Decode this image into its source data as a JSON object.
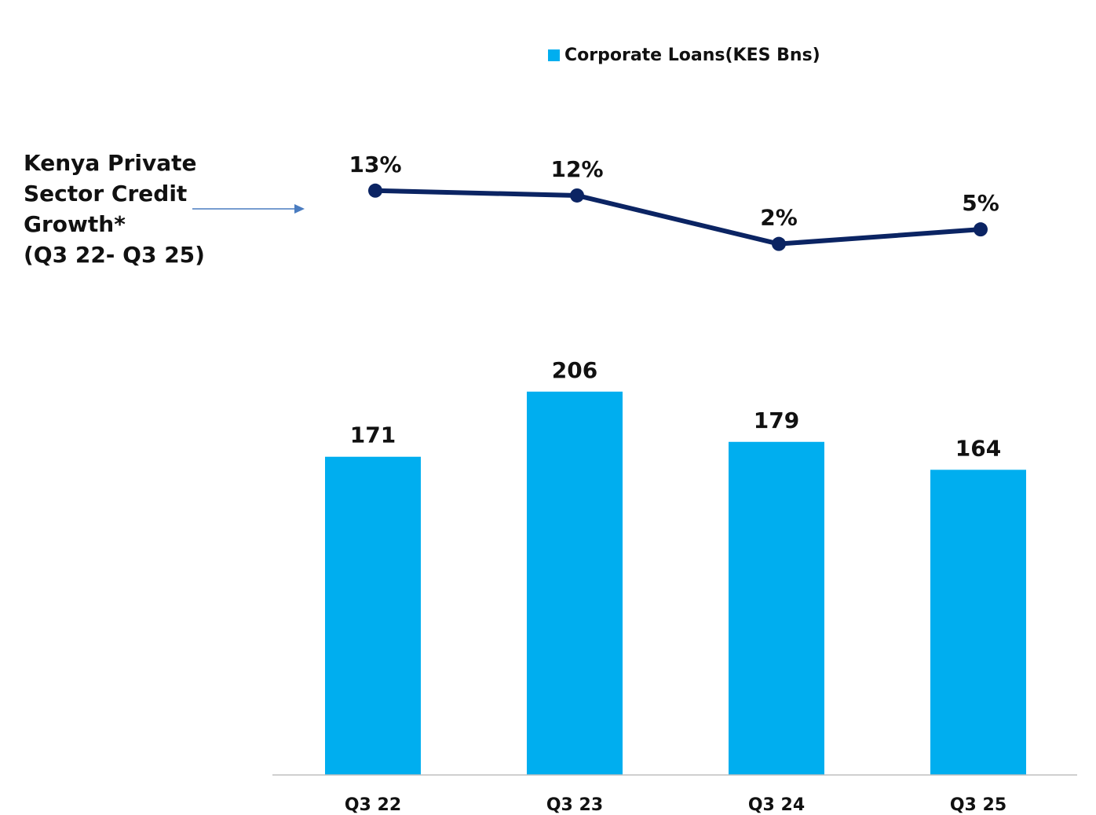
{
  "chart_data": [
    {
      "type": "bar",
      "categories": [
        "Q3 22",
        "Q3 23",
        "Q3 24",
        "Q3 25"
      ],
      "series": [
        {
          "name": "Corporate Loans(KES Bns)",
          "values": [
            171,
            206,
            179,
            164
          ]
        }
      ],
      "data_labels": [
        "171",
        "206",
        "179",
        "164"
      ],
      "ylim": [
        0,
        240
      ],
      "grid": false,
      "legend": "top-center",
      "color": "#00AEEF"
    },
    {
      "type": "line",
      "categories": [
        "Q3 22",
        "Q3 23",
        "Q3 24",
        "Q3 25"
      ],
      "values": [
        13,
        12,
        2,
        5
      ],
      "data_labels": [
        "13%",
        "12%",
        "2%",
        "5%"
      ],
      "ylim": [
        0,
        20
      ],
      "color": "#0B2463"
    }
  ],
  "side_label": {
    "lines": [
      "Kenya Private",
      "Sector Credit",
      "Growth*",
      "(Q3 22- Q3 25)"
    ]
  },
  "colors": {
    "bar": "#00AEEF",
    "line": "#0B2463",
    "arrow": "#4A7CC0",
    "axis": "#BFBFBF"
  }
}
